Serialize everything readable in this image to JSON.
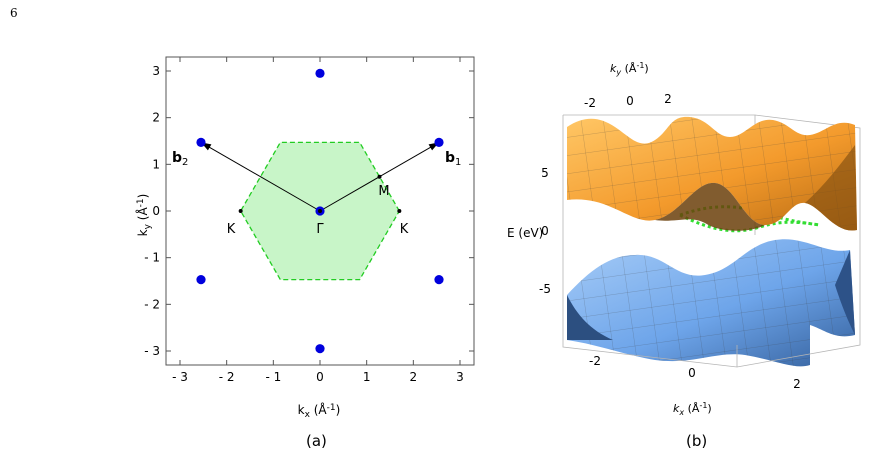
{
  "page_number": "6",
  "caption_a": "(a)",
  "caption_b": "(b)",
  "panel_a": {
    "xlabel": "k",
    "xlabel_sub": "x",
    "xlabel_unit": " (Å",
    "xlabel_exp": "-1",
    "xlabel_close": ")",
    "ylabel": "k",
    "ylabel_sub": "y",
    "ylabel_unit": " (Å",
    "ylabel_exp": "-1",
    "ylabel_close": ")",
    "gamma_label": "Γ",
    "m_label": "M",
    "k_left_label": "K",
    "k_right_label": "K",
    "b1_label": "b",
    "b1_sub": "1",
    "b2_label": "b",
    "b2_sub": "2"
  },
  "panel_b": {
    "zlabel": "E (eV)",
    "xlabel": "k",
    "xlabel_sub": "x",
    "xlabel_unit": " (Å",
    "xlabel_exp": "-1",
    "xlabel_close": ")",
    "ylabel": "k",
    "ylabel_sub": "y",
    "ylabel_unit": " (Å",
    "ylabel_exp": "-1",
    "ylabel_close": ")",
    "z_ticks": [
      "5",
      "0",
      "-5"
    ],
    "x_ticks": [
      "-2",
      "0",
      "2"
    ],
    "y_ticks": [
      "-2",
      "0",
      "2"
    ]
  },
  "chart_data": [
    {
      "type": "scatter",
      "xlim": [
        -3.3,
        3.3
      ],
      "ylim": [
        -3.3,
        3.3
      ],
      "x_ticks": [
        -3,
        -2,
        -1,
        0,
        1,
        2,
        3
      ],
      "y_ticks": [
        -3,
        -2,
        -1,
        0,
        1,
        2,
        3
      ],
      "x_tick_labels": [
        "- 3",
        "- 2",
        "- 1",
        "0",
        "1",
        "2",
        "3"
      ],
      "y_tick_labels": [
        "- 3",
        "- 2",
        "- 1",
        "0",
        "1",
        "2",
        "3"
      ],
      "reciprocal_lattice_points": [
        {
          "x": 0,
          "y": 2.95
        },
        {
          "x": -2.55,
          "y": 1.47
        },
        {
          "x": 2.55,
          "y": 1.47
        },
        {
          "x": 0,
          "y": 0
        },
        {
          "x": -2.55,
          "y": -1.47
        },
        {
          "x": 2.55,
          "y": -1.47
        },
        {
          "x": 0,
          "y": -2.95
        }
      ],
      "brillouin_zone_vertices": [
        {
          "x": 1.7,
          "y": 0
        },
        {
          "x": 0.85,
          "y": 1.47
        },
        {
          "x": -0.85,
          "y": 1.47
        },
        {
          "x": -1.7,
          "y": 0
        },
        {
          "x": -0.85,
          "y": -1.47
        },
        {
          "x": 0.85,
          "y": -1.47
        }
      ],
      "high_symmetry_points": [
        {
          "x": 0,
          "y": 0
        },
        {
          "x": 1.275,
          "y": 0.735
        },
        {
          "x": -1.7,
          "y": 0
        },
        {
          "x": 1.7,
          "y": 0
        }
      ],
      "vectors": [
        {
          "from": [
            0,
            0
          ],
          "to": [
            2.55,
            1.47
          ]
        },
        {
          "from": [
            0,
            0
          ],
          "to": [
            -2.55,
            1.47
          ]
        }
      ],
      "colors": {
        "points": "#0000dd",
        "zone_fill": "#c8f5c8",
        "zone_edge": "#22cc22"
      }
    },
    {
      "type": "surface",
      "z_ticks": [
        5,
        0,
        -5
      ],
      "x_ticks": [
        -2,
        0,
        2
      ],
      "y_ticks": [
        -2,
        0,
        2
      ],
      "colors": {
        "upper_band": "#f6a43a",
        "lower_band": "#7db0ee",
        "dirac_curve": "#33dd33"
      }
    }
  ]
}
